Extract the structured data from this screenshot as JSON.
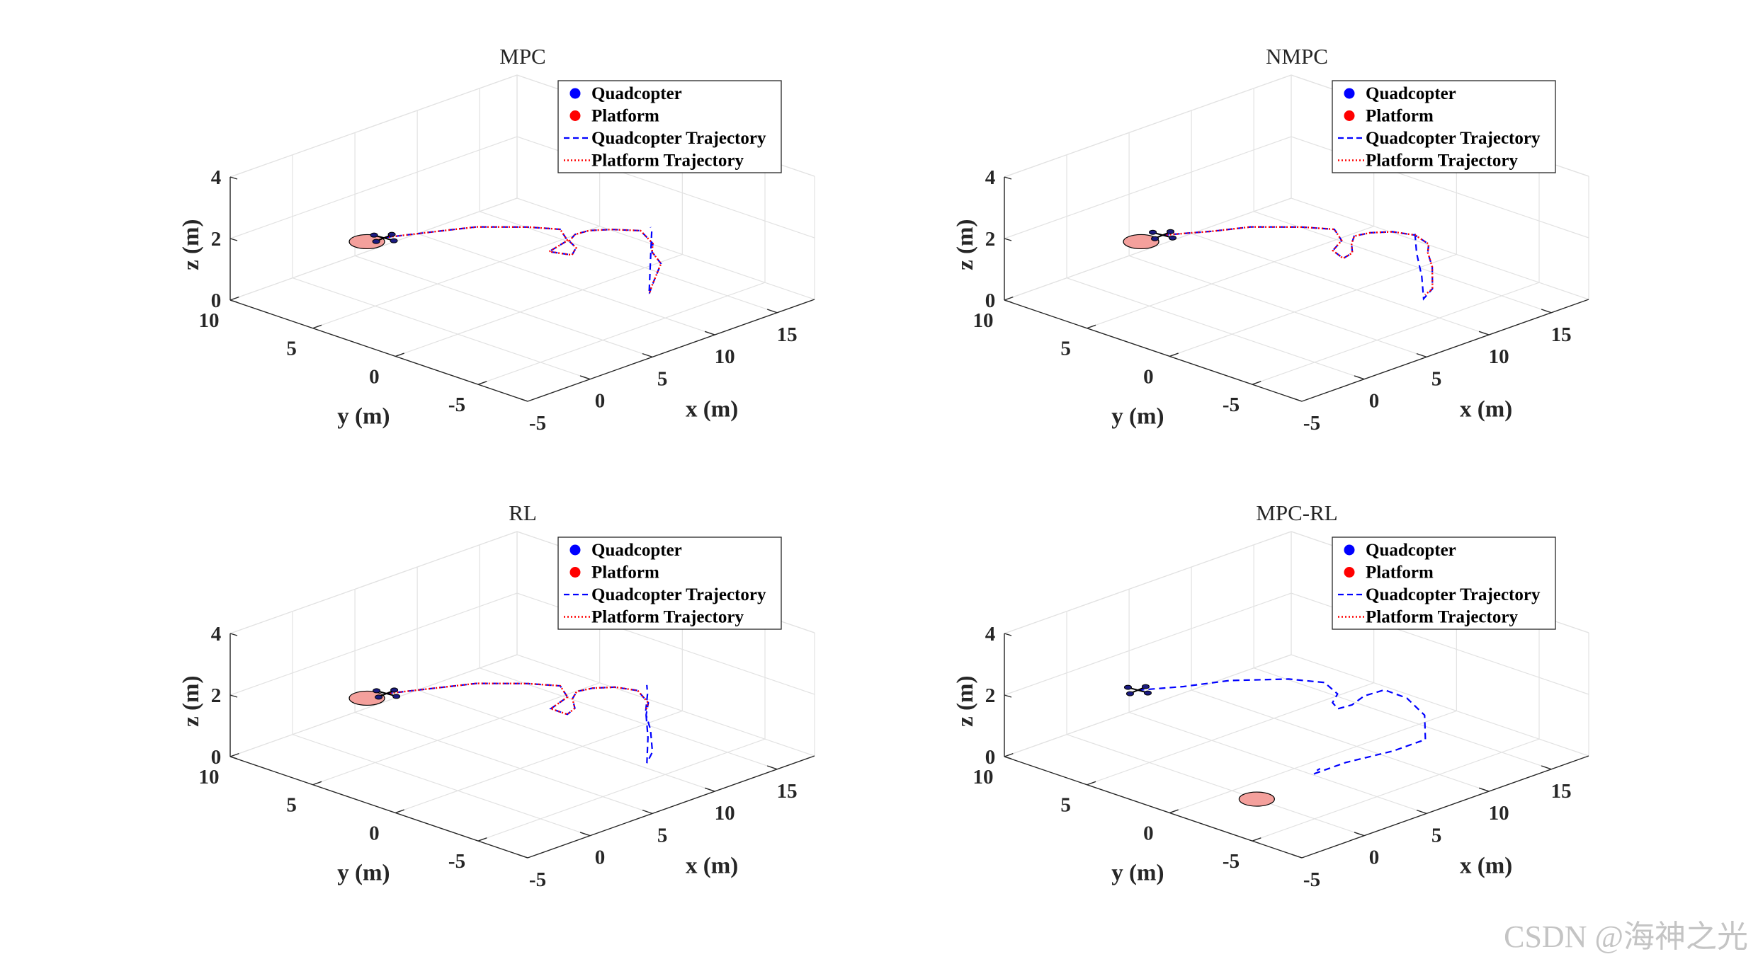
{
  "chart_data": [
    {
      "type": "line3d",
      "title": "MPC",
      "xlabel": "x (m)",
      "ylabel": "y (m)",
      "zlabel": "z (m)",
      "xticks": [
        -5,
        0,
        5,
        10,
        15
      ],
      "yticks": [
        -5,
        0,
        5,
        10
      ],
      "zticks": [
        0,
        2,
        4
      ],
      "xlim": [
        -5,
        18
      ],
      "ylim": [
        -8,
        10
      ],
      "zlim": [
        0,
        4
      ],
      "grid": true,
      "legend_position": "top-right",
      "legend": [
        "Quadcopter",
        "Platform",
        "Quadcopter Trajectory",
        "Platform Trajectory"
      ],
      "quadcopter_position": {
        "x": 1.1,
        "y": 5.3,
        "z": 2
      },
      "platform_position": {
        "x": 0,
        "y": 5.5,
        "z": 2
      },
      "quadcopter_trajectory": {
        "x": [
          1.2,
          4,
          6,
          8,
          9,
          8,
          6,
          6.5,
          7.5,
          8,
          9,
          10,
          11,
          12,
          11,
          10,
          9,
          6,
          5,
          8,
          11,
          12.5,
          12.8
        ],
        "y": [
          5.3,
          4.2,
          3.4,
          1.8,
          0.6,
          -0.6,
          -1,
          -2,
          -1.5,
          -0.7,
          -0.3,
          -0.4,
          -1,
          -2,
          -3.5,
          -4.2,
          -5.5,
          -7.2,
          -7.8,
          -5.6,
          -3.4,
          -2.3,
          -2
        ],
        "z": [
          2,
          2,
          2,
          2,
          2,
          2,
          2,
          2,
          2,
          2,
          2,
          2,
          2,
          2,
          2,
          2,
          2,
          2,
          2,
          2,
          2,
          2,
          2
        ]
      },
      "platform_trajectory": {
        "x": [
          1.2,
          4,
          6,
          8,
          9,
          8,
          6,
          6.5,
          7.5,
          8,
          9,
          10,
          11,
          12,
          11,
          10,
          9,
          6,
          5
        ],
        "y": [
          5.3,
          4.2,
          3.4,
          1.8,
          0.6,
          -0.6,
          -1,
          -2,
          -1.5,
          -0.7,
          -0.3,
          -0.4,
          -1,
          -2,
          -3.5,
          -4.2,
          -5.5,
          -7.2,
          -7.8
        ],
        "z": [
          2,
          2,
          2,
          2,
          2,
          2,
          2,
          2,
          2,
          2,
          2,
          2,
          2,
          2,
          2,
          2,
          2,
          2,
          2
        ]
      }
    },
    {
      "type": "line3d",
      "title": "NMPC",
      "xlabel": "x (m)",
      "ylabel": "y (m)",
      "zlabel": "z (m)",
      "xticks": [
        -5,
        0,
        5,
        10,
        15
      ],
      "yticks": [
        -5,
        0,
        5,
        10
      ],
      "zticks": [
        0,
        2,
        4
      ],
      "xlim": [
        -5,
        18
      ],
      "ylim": [
        -8,
        10
      ],
      "zlim": [
        0,
        4
      ],
      "grid": true,
      "legend_position": "top-right",
      "legend": [
        "Quadcopter",
        "Platform",
        "Quadcopter Trajectory",
        "Platform Trajectory"
      ],
      "quadcopter_position": {
        "x": 1.6,
        "y": 5.4,
        "z": 2
      },
      "platform_position": {
        "x": 0,
        "y": 5.5,
        "z": 2
      },
      "quadcopter_trajectory": {
        "x": [
          1.6,
          4,
          6,
          8,
          9,
          8,
          6.5,
          6,
          7,
          8,
          9,
          10,
          11,
          11.5,
          11,
          10,
          8.5,
          6,
          4.5,
          7,
          9.5,
          11,
          12
        ],
        "y": [
          5.4,
          4.2,
          3.4,
          1.8,
          0.6,
          -0.6,
          -1.2,
          -2.2,
          -2,
          -1.2,
          -0.6,
          -0.8,
          -1.4,
          -2.4,
          -3.6,
          -4.3,
          -5.7,
          -7.6,
          -8.2,
          -6.2,
          -4,
          -2.8,
          -2
        ],
        "z": [
          2,
          2,
          2,
          2,
          2,
          2,
          2,
          2,
          2,
          2,
          2,
          2,
          2,
          2,
          2,
          2,
          2,
          2,
          2,
          2,
          2,
          2,
          2
        ]
      },
      "platform_trajectory": {
        "x": [
          1.6,
          4,
          6,
          8,
          9,
          8,
          6.5,
          6,
          7,
          8,
          9,
          10,
          11,
          11.5,
          11,
          10,
          8.5,
          6,
          5
        ],
        "y": [
          5.4,
          4.2,
          3.4,
          1.8,
          0.6,
          -0.6,
          -1.2,
          -2.2,
          -2,
          -1.2,
          -0.6,
          -0.8,
          -1.4,
          -2.4,
          -3.6,
          -4.3,
          -5.7,
          -7.6,
          -7.9
        ],
        "z": [
          2,
          2,
          2,
          2,
          2,
          2,
          2,
          2,
          2,
          2,
          2,
          2,
          2,
          2,
          2,
          2,
          2,
          2,
          2
        ]
      }
    },
    {
      "type": "line3d",
      "title": "RL",
      "xlabel": "x (m)",
      "ylabel": "y (m)",
      "zlabel": "z (m)",
      "xticks": [
        -5,
        0,
        5,
        10,
        15
      ],
      "yticks": [
        -5,
        0,
        5,
        10
      ],
      "zticks": [
        0,
        2,
        4
      ],
      "xlim": [
        -5,
        18
      ],
      "ylim": [
        -8,
        10
      ],
      "zlim": [
        0,
        4
      ],
      "grid": true,
      "legend_position": "top-right",
      "legend": [
        "Quadcopter",
        "Platform",
        "Quadcopter Trajectory",
        "Platform Trajectory"
      ],
      "quadcopter_position": {
        "x": 1.3,
        "y": 5.3,
        "z": 2
      },
      "platform_position": {
        "x": 0,
        "y": 5.5,
        "z": 2
      },
      "quadcopter_trajectory": {
        "x": [
          1.3,
          4,
          6,
          8,
          9,
          8,
          6,
          6,
          7,
          8,
          9,
          10,
          11,
          11.5,
          10.5,
          9,
          7.5,
          5,
          3.5,
          6.5,
          9.5,
          11.5,
          12.5
        ],
        "y": [
          5.3,
          4.2,
          3.4,
          1.8,
          0.6,
          -0.6,
          -1.1,
          -2.1,
          -1.8,
          -0.9,
          -0.4,
          -0.6,
          -1.2,
          -2.2,
          -3.6,
          -4.6,
          -6,
          -8,
          -8.8,
          -6.6,
          -4.2,
          -2.8,
          -2
        ],
        "z": [
          2,
          2,
          2,
          2,
          2,
          2,
          2,
          2,
          2,
          2,
          2,
          2,
          2,
          2,
          2,
          2,
          2,
          2,
          2,
          2,
          2,
          2,
          2
        ]
      },
      "platform_trajectory": {
        "x": [
          1.3,
          4,
          6,
          8,
          9,
          8,
          6,
          6,
          7,
          8,
          9,
          10,
          11,
          11.5,
          10.5,
          9.5
        ],
        "y": [
          5.3,
          4.2,
          3.4,
          1.8,
          0.6,
          -0.6,
          -1.1,
          -2.1,
          -1.8,
          -0.9,
          -0.4,
          -0.6,
          -1.2,
          -2.2,
          -3.6,
          -4.2
        ],
        "z": [
          2,
          2,
          2,
          2,
          2,
          2,
          2,
          2,
          2,
          2,
          2,
          2,
          2,
          2,
          2,
          2
        ]
      }
    },
    {
      "type": "line3d",
      "title": "MPC-RL",
      "xlabel": "x (m)",
      "ylabel": "y (m)",
      "zlabel": "z (m)",
      "xticks": [
        -5,
        0,
        5,
        10,
        15
      ],
      "yticks": [
        -5,
        0,
        5,
        10
      ],
      "zticks": [
        0,
        2,
        4
      ],
      "xlim": [
        -5,
        18
      ],
      "ylim": [
        -8,
        10
      ],
      "zlim": [
        0,
        4
      ],
      "grid": true,
      "legend_position": "top-right",
      "legend": [
        "Quadcopter",
        "Platform",
        "Quadcopter Trajectory",
        "Platform Trajectory"
      ],
      "quadcopter_position": {
        "x": 0.8,
        "y": 6.3,
        "z": 2
      },
      "platform_position": {
        "x": 0,
        "y": -1.5,
        "z": 0
      },
      "quadcopter_trajectory": {
        "x": [
          0.8,
          3,
          5.5,
          8,
          9,
          8.2,
          7,
          6.5,
          7.5,
          9,
          10.5,
          11.5,
          12,
          11,
          9.5,
          7,
          4.5,
          5,
          6
        ],
        "y": [
          6.3,
          5.2,
          4.3,
          2.6,
          1.2,
          -0.2,
          -0.8,
          -1.5,
          -1.6,
          -1.2,
          -1.3,
          -1.9,
          -2.6,
          -3.4,
          -2.6,
          -1.6,
          -1.6,
          -1.2,
          -0.8
        ],
        "z": [
          2,
          2,
          2,
          2,
          2,
          2,
          2,
          2,
          2,
          2,
          2,
          1.7,
          1.2,
          0.7,
          0.4,
          0.2,
          0.2,
          0.1,
          0
        ]
      },
      "platform_trajectory": {
        "x": [],
        "y": [],
        "z": []
      }
    }
  ],
  "colors": {
    "quadcopter": "#0000ff",
    "platform": "#ff0000",
    "platform_disk_fill": "#f4a09c",
    "axis": "#262626",
    "grid": "#e2e2e2"
  },
  "watermark": "CSDN @海神之光"
}
